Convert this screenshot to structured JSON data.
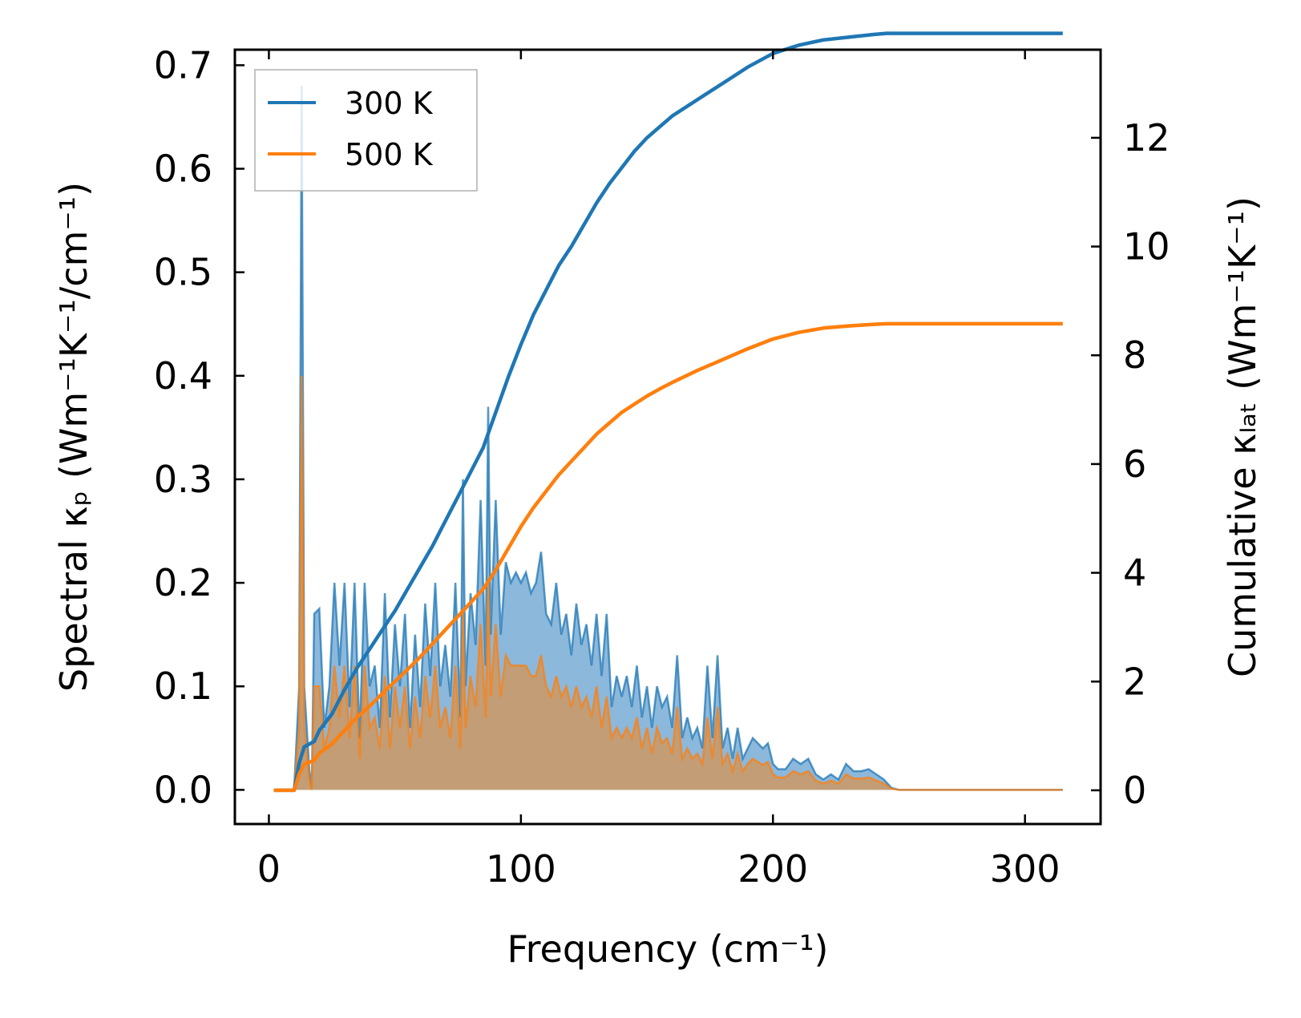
{
  "chart_data": {
    "type": "area+line (dual axis)",
    "xlabel": "Frequency (cm⁻¹)",
    "ylabel_left": "Spectral κₚ (Wm⁻¹K⁻¹/cm⁻¹)",
    "ylabel_right": "Cumulative κₗₐₜ (Wm⁻¹K⁻¹)",
    "xlim": [
      -13.5,
      330
    ],
    "ylim_left": [
      -0.033,
      0.715
    ],
    "ylim_right": [
      -0.62,
      13.62
    ],
    "x_ticks": [
      0,
      100,
      200,
      300
    ],
    "y_left_ticks": [
      0.0,
      0.1,
      0.2,
      0.3,
      0.4,
      0.5,
      0.6,
      0.7
    ],
    "y_right_ticks": [
      0,
      2,
      4,
      6,
      8,
      10,
      12
    ],
    "x_tick_labels": [
      "0",
      "100",
      "200",
      "300"
    ],
    "y_left_tick_labels": [
      "0.0",
      "0.1",
      "0.2",
      "0.3",
      "0.4",
      "0.5",
      "0.6",
      "0.7"
    ],
    "y_right_tick_labels": [
      "0",
      "2",
      "4",
      "6",
      "8",
      "10",
      "12"
    ],
    "legend": {
      "location": "upper-left",
      "entries": [
        "300 K",
        "500 K"
      ]
    },
    "colors": {
      "300 K": "#1f77b4",
      "500 K": "#ff7f0e",
      "300 K_fill": "#8cb8dc",
      "500 K_fill": "#c69b6d"
    },
    "series": [
      {
        "name": "300 K",
        "kind": "spectral",
        "axis": "left",
        "x": [
          2,
          10,
          12,
          13,
          14,
          16,
          17,
          18,
          20,
          22,
          24,
          26,
          28,
          30,
          32,
          34,
          36,
          38,
          40,
          42,
          44,
          46,
          48,
          50,
          52,
          54,
          56,
          58,
          60,
          62,
          64,
          66,
          68,
          70,
          72,
          74,
          76,
          77,
          78,
          80,
          82,
          84,
          86,
          87,
          88,
          90,
          92,
          94,
          96,
          98,
          100,
          102,
          104,
          106,
          108,
          110,
          112,
          114,
          116,
          118,
          120,
          122,
          124,
          126,
          128,
          130,
          132,
          134,
          136,
          138,
          140,
          142,
          144,
          146,
          148,
          150,
          152,
          154,
          156,
          158,
          160,
          162,
          164,
          166,
          168,
          170,
          172,
          174,
          176,
          178,
          180,
          182,
          184,
          186,
          188,
          190,
          192,
          194,
          196,
          198,
          200,
          202,
          205,
          208,
          211,
          214,
          217,
          220,
          223,
          226,
          229,
          232,
          235,
          238,
          241,
          244,
          247,
          250,
          255,
          260,
          270,
          280,
          290,
          300,
          315
        ],
        "values": [
          0,
          0,
          0.1,
          0.68,
          0.1,
          0.02,
          0.0,
          0.17,
          0.175,
          0.06,
          0.1,
          0.2,
          0.12,
          0.2,
          0.08,
          0.2,
          0.05,
          0.2,
          0.1,
          0.12,
          0.06,
          0.19,
          0.07,
          0.16,
          0.1,
          0.17,
          0.06,
          0.15,
          0.08,
          0.18,
          0.11,
          0.2,
          0.1,
          0.14,
          0.09,
          0.2,
          0.07,
          0.3,
          0.1,
          0.19,
          0.14,
          0.28,
          0.12,
          0.37,
          0.15,
          0.28,
          0.15,
          0.22,
          0.2,
          0.21,
          0.2,
          0.21,
          0.19,
          0.2,
          0.23,
          0.17,
          0.16,
          0.2,
          0.15,
          0.17,
          0.13,
          0.18,
          0.14,
          0.16,
          0.12,
          0.17,
          0.11,
          0.17,
          0.08,
          0.11,
          0.09,
          0.11,
          0.08,
          0.12,
          0.07,
          0.1,
          0.06,
          0.1,
          0.08,
          0.09,
          0.06,
          0.13,
          0.05,
          0.07,
          0.05,
          0.06,
          0.04,
          0.12,
          0.05,
          0.13,
          0.04,
          0.06,
          0.03,
          0.06,
          0.03,
          0.04,
          0.05,
          0.045,
          0.04,
          0.045,
          0.025,
          0.02,
          0.02,
          0.03,
          0.025,
          0.03,
          0.015,
          0.01,
          0.015,
          0.01,
          0.025,
          0.018,
          0.018,
          0.02,
          0.015,
          0.01,
          0.002,
          0,
          0,
          0,
          0,
          0,
          0,
          0,
          0
        ]
      },
      {
        "name": "500 K",
        "kind": "spectral",
        "axis": "left",
        "x": [
          2,
          10,
          12,
          13,
          14,
          16,
          17,
          18,
          20,
          22,
          24,
          26,
          28,
          30,
          32,
          34,
          36,
          38,
          40,
          42,
          44,
          46,
          48,
          50,
          52,
          54,
          56,
          58,
          60,
          62,
          64,
          66,
          68,
          70,
          72,
          74,
          76,
          77,
          78,
          80,
          82,
          84,
          86,
          87,
          88,
          90,
          92,
          94,
          96,
          98,
          100,
          102,
          104,
          106,
          108,
          110,
          112,
          114,
          116,
          118,
          120,
          122,
          124,
          126,
          128,
          130,
          132,
          134,
          136,
          138,
          140,
          142,
          144,
          146,
          148,
          150,
          152,
          154,
          156,
          158,
          160,
          162,
          164,
          166,
          168,
          170,
          172,
          174,
          176,
          178,
          180,
          182,
          184,
          186,
          188,
          190,
          192,
          194,
          196,
          198,
          200,
          202,
          205,
          208,
          211,
          214,
          217,
          220,
          223,
          226,
          229,
          232,
          235,
          238,
          241,
          244,
          247,
          250,
          255,
          260,
          270,
          280,
          290,
          300,
          315
        ],
        "values": [
          0,
          0,
          0.06,
          0.4,
          0.06,
          0.01,
          0.0,
          0.1,
          0.1,
          0.04,
          0.06,
          0.12,
          0.07,
          0.12,
          0.05,
          0.12,
          0.03,
          0.12,
          0.06,
          0.07,
          0.04,
          0.11,
          0.04,
          0.1,
          0.06,
          0.1,
          0.04,
          0.09,
          0.05,
          0.11,
          0.07,
          0.12,
          0.06,
          0.08,
          0.05,
          0.12,
          0.04,
          0.17,
          0.06,
          0.11,
          0.08,
          0.16,
          0.07,
          0.2,
          0.09,
          0.16,
          0.09,
          0.13,
          0.12,
          0.12,
          0.12,
          0.12,
          0.11,
          0.11,
          0.13,
          0.1,
          0.09,
          0.11,
          0.09,
          0.1,
          0.08,
          0.1,
          0.08,
          0.09,
          0.07,
          0.1,
          0.06,
          0.09,
          0.05,
          0.06,
          0.05,
          0.06,
          0.05,
          0.07,
          0.04,
          0.06,
          0.035,
          0.06,
          0.045,
          0.05,
          0.035,
          0.08,
          0.03,
          0.04,
          0.03,
          0.035,
          0.025,
          0.07,
          0.03,
          0.08,
          0.025,
          0.035,
          0.018,
          0.035,
          0.018,
          0.025,
          0.03,
          0.027,
          0.024,
          0.027,
          0.015,
          0.012,
          0.012,
          0.018,
          0.015,
          0.018,
          0.009,
          0.006,
          0.009,
          0.006,
          0.015,
          0.011,
          0.011,
          0.012,
          0.009,
          0.006,
          0.001,
          0,
          0,
          0,
          0,
          0,
          0,
          0,
          0
        ]
      },
      {
        "name": "300 K",
        "kind": "cumulative",
        "axis": "right",
        "x": [
          2,
          10,
          12,
          14,
          18,
          20,
          25,
          30,
          35,
          40,
          45,
          50,
          55,
          60,
          65,
          70,
          75,
          80,
          85,
          90,
          95,
          100,
          105,
          110,
          115,
          120,
          125,
          130,
          135,
          140,
          145,
          150,
          155,
          160,
          170,
          180,
          190,
          200,
          210,
          220,
          230,
          240,
          245,
          250,
          260,
          280,
          300,
          315
        ],
        "values": [
          0,
          0,
          0.5,
          0.8,
          0.9,
          1.1,
          1.4,
          1.85,
          2.25,
          2.6,
          2.95,
          3.3,
          3.7,
          4.1,
          4.5,
          4.95,
          5.4,
          5.85,
          6.3,
          6.95,
          7.6,
          8.2,
          8.75,
          9.2,
          9.65,
          10.0,
          10.4,
          10.8,
          11.15,
          11.45,
          11.75,
          12.0,
          12.2,
          12.4,
          12.7,
          13.0,
          13.3,
          13.55,
          13.7,
          13.8,
          13.85,
          13.9,
          13.92,
          13.92,
          13.92,
          13.92,
          13.92,
          13.92
        ]
      },
      {
        "name": "500 K",
        "kind": "cumulative",
        "axis": "right",
        "x": [
          2,
          10,
          12,
          14,
          18,
          20,
          25,
          30,
          35,
          40,
          45,
          50,
          55,
          60,
          65,
          70,
          75,
          80,
          85,
          90,
          95,
          100,
          105,
          110,
          115,
          120,
          125,
          130,
          135,
          140,
          145,
          150,
          155,
          160,
          170,
          180,
          190,
          200,
          210,
          220,
          230,
          240,
          245,
          250,
          260,
          280,
          300,
          315
        ],
        "values": [
          0,
          0,
          0.3,
          0.48,
          0.55,
          0.68,
          0.85,
          1.1,
          1.35,
          1.55,
          1.78,
          2.0,
          2.22,
          2.45,
          2.7,
          2.95,
          3.2,
          3.45,
          3.7,
          4.05,
          4.45,
          4.85,
          5.2,
          5.5,
          5.8,
          6.05,
          6.3,
          6.55,
          6.75,
          6.95,
          7.1,
          7.25,
          7.38,
          7.5,
          7.72,
          7.92,
          8.12,
          8.3,
          8.42,
          8.5,
          8.54,
          8.57,
          8.58,
          8.58,
          8.58,
          8.58,
          8.58,
          8.58
        ]
      }
    ]
  }
}
